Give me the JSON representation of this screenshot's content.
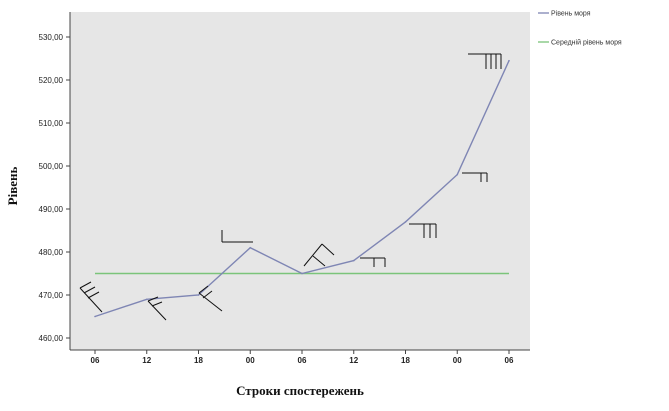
{
  "chart_data": {
    "type": "line",
    "categories": [
      "06",
      "12",
      "18",
      "00",
      "06",
      "12",
      "18",
      "00",
      "06"
    ],
    "series": [
      {
        "name": "Рівень моря",
        "color": "#7f86b4",
        "values": [
          465,
          469,
          470,
          481,
          475,
          478,
          487,
          498,
          524.5
        ]
      },
      {
        "name": "Середній рівень моря",
        "color": "#7bc47a",
        "values": [
          475,
          475,
          475,
          475,
          475,
          475,
          475,
          475,
          475
        ]
      }
    ],
    "ylabel": "Рівень",
    "xlabel": "Строки спостережень",
    "ylim": [
      458,
      532
    ],
    "yticks": [
      "460,00",
      "470,00",
      "480,00",
      "490,00",
      "500,00",
      "510,00",
      "520,00",
      "530,00"
    ],
    "ytick_values": [
      460,
      470,
      480,
      490,
      500,
      510,
      520,
      530
    ],
    "grid": false,
    "legend_position": "top-right",
    "annotations": "wind barbs drawn near data points"
  }
}
